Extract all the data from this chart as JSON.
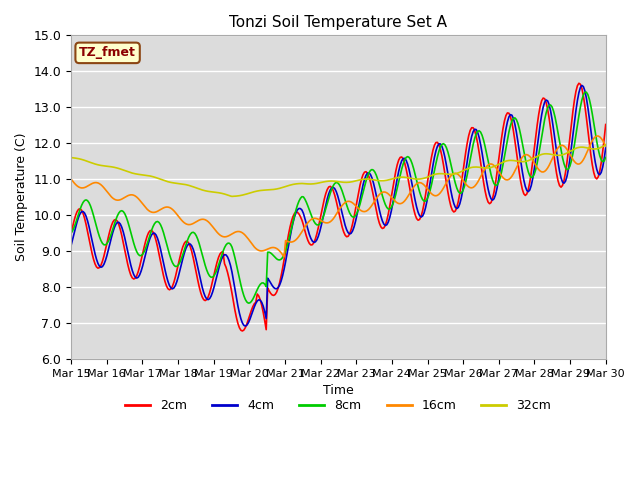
{
  "title": "Tonzi Soil Temperature Set A",
  "xlabel": "Time",
  "ylabel": "Soil Temperature (C)",
  "ylim": [
    6.0,
    15.0
  ],
  "yticks": [
    6.0,
    7.0,
    8.0,
    9.0,
    10.0,
    11.0,
    12.0,
    13.0,
    14.0,
    15.0
  ],
  "annotation": "TZ_fmet",
  "series_colors": {
    "2cm": "#ff0000",
    "4cm": "#0000cc",
    "8cm": "#00cc00",
    "16cm": "#ff8800",
    "32cm": "#cccc00"
  },
  "x_labels": [
    "Mar 15",
    "Mar 16",
    "Mar 17",
    "Mar 18",
    "Mar 19",
    "Mar 20",
    "Mar 21",
    "Mar 22",
    "Mar 23",
    "Mar 24",
    "Mar 25",
    "Mar 26",
    "Mar 27",
    "Mar 28",
    "Mar 29",
    "Mar 30"
  ],
  "legend_labels": [
    "2cm",
    "4cm",
    "8cm",
    "16cm",
    "32cm"
  ]
}
